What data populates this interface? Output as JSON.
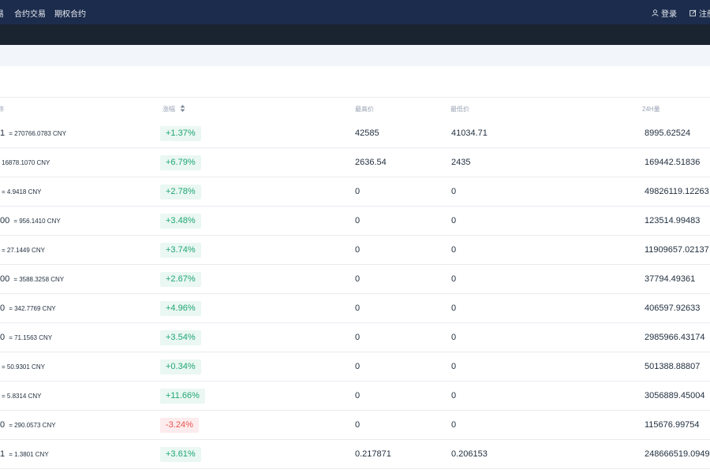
{
  "nav": {
    "left_items": [
      {
        "label": "易"
      },
      {
        "label": "合约交易"
      },
      {
        "label": "期权合约"
      }
    ],
    "login_label": "登录",
    "register_label": "注册",
    "icons": {
      "login": "user-icon",
      "register": "edit-icon"
    }
  },
  "table": {
    "headers": {
      "pair": "称",
      "change": "涨幅",
      "high": "最高价",
      "low": "最低价",
      "volume": "24H量"
    },
    "rows": [
      {
        "price": "1",
        "cny": "= 270766.0783 CNY",
        "change": "+1.37%",
        "dir": "up",
        "high": "42585",
        "low": "41034.71",
        "volume": "8995.62524"
      },
      {
        "price": "",
        "cny": "16878.1070 CNY",
        "change": "+6.79%",
        "dir": "up",
        "high": "2636.54",
        "low": "2435",
        "volume": "169442.51836"
      },
      {
        "price": "",
        "cny": "= 4.9418 CNY",
        "change": "+2.78%",
        "dir": "up",
        "high": "0",
        "low": "0",
        "volume": "49826119.12263"
      },
      {
        "price": "00",
        "cny": "= 956.1410 CNY",
        "change": "+3.48%",
        "dir": "up",
        "high": "0",
        "low": "0",
        "volume": "123514.99483"
      },
      {
        "price": "",
        "cny": "= 27.1449 CNY",
        "change": "+3.74%",
        "dir": "up",
        "high": "0",
        "low": "0",
        "volume": "11909657.02137"
      },
      {
        "price": "00",
        "cny": "= 3588.3258 CNY",
        "change": "+2.67%",
        "dir": "up",
        "high": "0",
        "low": "0",
        "volume": "37794.49361"
      },
      {
        "price": "0",
        "cny": "= 342.7769 CNY",
        "change": "+4.96%",
        "dir": "up",
        "high": "0",
        "low": "0",
        "volume": "406597.92633"
      },
      {
        "price": "0",
        "cny": "= 71.1563 CNY",
        "change": "+3.54%",
        "dir": "up",
        "high": "0",
        "low": "0",
        "volume": "2985966.43174"
      },
      {
        "price": "",
        "cny": "= 50.9301 CNY",
        "change": "+0.34%",
        "dir": "up",
        "high": "0",
        "low": "0",
        "volume": "501388.88807"
      },
      {
        "price": "",
        "cny": "= 5.8314 CNY",
        "change": "+11.66%",
        "dir": "up",
        "high": "0",
        "low": "0",
        "volume": "3056889.45004"
      },
      {
        "price": "0",
        "cny": "= 290.0573 CNY",
        "change": "-3.24%",
        "dir": "down",
        "high": "0",
        "low": "0",
        "volume": "115676.99754"
      },
      {
        "price": "1",
        "cny": "= 1.3801 CNY",
        "change": "+3.61%",
        "dir": "up",
        "high": "0.217871",
        "low": "0.206153",
        "volume": "248666519.0949"
      }
    ]
  },
  "colors": {
    "nav_bg": "#1c2c4c",
    "subbar_bg": "#1a2330",
    "up": "#1fa675",
    "up_bg": "#eaf7f2",
    "down": "#e8554e",
    "down_bg": "#fdeced"
  }
}
